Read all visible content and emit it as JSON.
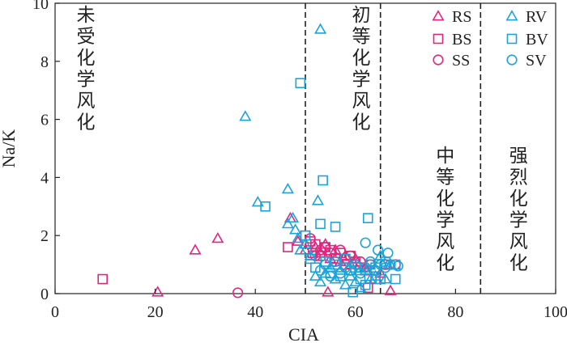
{
  "chart_data": {
    "type": "scatter",
    "xlabel": "CIA",
    "ylabel": "Na/K",
    "xlim": [
      0,
      100
    ],
    "ylim": [
      0,
      10
    ],
    "xticks": [
      "0",
      "20",
      "40",
      "60",
      "80",
      "100"
    ],
    "yticks": [
      "0",
      "2",
      "4",
      "6",
      "8",
      "10"
    ],
    "grid": false,
    "legend_position": "top-right",
    "boundaries": [
      50,
      65,
      85
    ],
    "zones": [
      {
        "label": "未受化学风化",
        "x_range": [
          0,
          50
        ]
      },
      {
        "label": "初等化学风化",
        "x_range": [
          50,
          65
        ]
      },
      {
        "label": "中等化学风化",
        "x_range": [
          65,
          85
        ]
      },
      {
        "label": "强烈化学风化",
        "x_range": [
          85,
          100
        ]
      }
    ],
    "colors": {
      "R_S": "#e0267d",
      "BV_SV": "#1ba4d9"
    },
    "series": [
      {
        "name": "RS",
        "marker": "triangle",
        "color": "#e0267d",
        "points": [
          [
            20.5,
            0.05
          ],
          [
            28,
            1.5
          ],
          [
            32.5,
            1.9
          ],
          [
            47,
            2.6
          ],
          [
            48.5,
            1.8
          ],
          [
            50,
            1.5
          ],
          [
            51,
            1.3
          ],
          [
            52,
            1.6
          ],
          [
            53,
            1.4
          ],
          [
            54,
            1.7
          ],
          [
            55,
            1.2
          ],
          [
            56,
            1.5
          ],
          [
            57,
            1.1
          ],
          [
            58,
            1.3
          ],
          [
            59,
            1.0
          ],
          [
            60,
            1.2
          ],
          [
            62,
            0.9
          ],
          [
            54.5,
            0.05
          ],
          [
            65,
            0.7
          ],
          [
            67,
            0.1
          ]
        ]
      },
      {
        "name": "BS",
        "marker": "square",
        "color": "#e0267d",
        "points": [
          [
            9.5,
            0.5
          ],
          [
            46.5,
            1.6
          ],
          [
            50,
            2.0
          ],
          [
            51,
            1.8
          ],
          [
            51.5,
            1.4
          ],
          [
            52,
            1.7
          ],
          [
            53,
            1.3
          ],
          [
            54,
            1.6
          ],
          [
            55,
            1.5
          ],
          [
            56,
            1.2
          ],
          [
            57,
            1.4
          ],
          [
            58,
            1.0
          ],
          [
            59,
            1.3
          ],
          [
            60,
            1.1
          ],
          [
            61,
            0.9
          ],
          [
            62,
            0.8
          ],
          [
            64,
            0.5
          ],
          [
            66,
            1.0
          ],
          [
            62.5,
            0.2
          ]
        ]
      },
      {
        "name": "SS",
        "marker": "circle",
        "color": "#e0267d",
        "points": [
          [
            36.5,
            0.03
          ],
          [
            51,
            1.9
          ],
          [
            52,
            1.3
          ],
          [
            53,
            1.5
          ],
          [
            54,
            1.6
          ],
          [
            55,
            1.4
          ],
          [
            56,
            1.1
          ],
          [
            57,
            1.5
          ],
          [
            58,
            1.2
          ],
          [
            59,
            1.3
          ],
          [
            60,
            1.0
          ],
          [
            61,
            1.1
          ],
          [
            62,
            0.9
          ],
          [
            63,
            1.0
          ],
          [
            64,
            0.8
          ],
          [
            66,
            1.0
          ],
          [
            68,
            1.0
          ]
        ]
      },
      {
        "name": "RV",
        "marker": "triangle",
        "color": "#1ba4d9",
        "points": [
          [
            53,
            9.1
          ],
          [
            38,
            6.1
          ],
          [
            46.5,
            3.6
          ],
          [
            40.5,
            3.15
          ],
          [
            52.5,
            3.2
          ],
          [
            46.5,
            2.4
          ],
          [
            47.5,
            2.6
          ],
          [
            48,
            2.2
          ],
          [
            48.5,
            1.9
          ],
          [
            49,
            1.5
          ],
          [
            50,
            1.7
          ],
          [
            51,
            1.3
          ],
          [
            52,
            0.6
          ],
          [
            53,
            0.4
          ],
          [
            54,
            0.7
          ],
          [
            55,
            0.9
          ],
          [
            56,
            0.5
          ],
          [
            57,
            0.8
          ],
          [
            58,
            0.3
          ],
          [
            59,
            0.6
          ],
          [
            60,
            0.4
          ],
          [
            61,
            0.2
          ],
          [
            62,
            0.8
          ],
          [
            63,
            0.5
          ],
          [
            64,
            0.6
          ],
          [
            66,
            0.5
          ],
          [
            67,
            1.0
          ],
          [
            65,
            1.3
          ]
        ]
      },
      {
        "name": "BV",
        "marker": "square",
        "color": "#1ba4d9",
        "points": [
          [
            49,
            7.25
          ],
          [
            53.5,
            3.9
          ],
          [
            42,
            3.0
          ],
          [
            50,
            2.0
          ],
          [
            53,
            2.4
          ],
          [
            56,
            2.3
          ],
          [
            62.5,
            2.6
          ],
          [
            51,
            1.2
          ],
          [
            52,
            0.9
          ],
          [
            54,
            1.1
          ],
          [
            55,
            0.7
          ],
          [
            56,
            1.0
          ],
          [
            57,
            0.6
          ],
          [
            58,
            1.2
          ],
          [
            59,
            0.8
          ],
          [
            60,
            0.9
          ],
          [
            61,
            0.5
          ],
          [
            62,
            0.3
          ],
          [
            63,
            1.0
          ],
          [
            64,
            0.9
          ],
          [
            66,
            1.1
          ],
          [
            68,
            1.0
          ],
          [
            68,
            0.5
          ],
          [
            59.5,
            0.05
          ],
          [
            65,
            0.5
          ]
        ]
      },
      {
        "name": "SV",
        "marker": "circle",
        "color": "#1ba4d9",
        "points": [
          [
            62,
            1.75
          ],
          [
            64.5,
            1.5
          ],
          [
            66.5,
            1.4
          ],
          [
            68.5,
            0.95
          ],
          [
            53,
            0.8
          ],
          [
            54,
            1.0
          ],
          [
            55,
            0.6
          ],
          [
            56,
            1.1
          ],
          [
            57,
            0.7
          ],
          [
            58,
            0.9
          ],
          [
            59,
            0.8
          ],
          [
            60,
            1.0
          ],
          [
            61,
            0.7
          ],
          [
            62,
            0.9
          ],
          [
            63,
            1.1
          ],
          [
            64,
            0.8
          ],
          [
            65,
            1.0
          ],
          [
            66,
            0.9
          ],
          [
            67,
            1.0
          ]
        ]
      }
    ]
  }
}
